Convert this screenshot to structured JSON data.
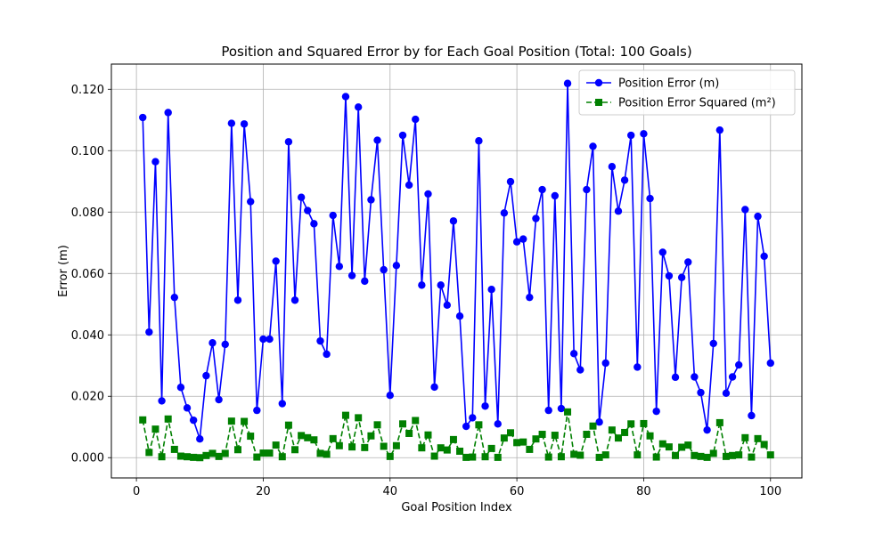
{
  "chart_data": {
    "type": "line",
    "title": "Position and Squared Error by for Each Goal Position (Total: 100 Goals)",
    "xlabel": "Goal Position Index",
    "ylabel": "Error (m)",
    "xlim": [
      -3.95,
      104.95
    ],
    "ylim": [
      -0.0066,
      0.1282
    ],
    "xticks": [
      0,
      20,
      40,
      60,
      80,
      100
    ],
    "yticks": [
      0.0,
      0.02,
      0.04,
      0.06,
      0.08,
      0.1,
      0.12
    ],
    "ytick_labels": [
      "0.000",
      "0.020",
      "0.040",
      "0.060",
      "0.080",
      "0.100",
      "0.120"
    ],
    "grid": true,
    "legend_position": "top-right",
    "x": [
      1,
      2,
      3,
      4,
      5,
      6,
      7,
      8,
      9,
      10,
      11,
      12,
      13,
      14,
      15,
      16,
      17,
      18,
      19,
      20,
      21,
      22,
      23,
      24,
      25,
      26,
      27,
      28,
      29,
      30,
      31,
      32,
      33,
      34,
      35,
      36,
      37,
      38,
      39,
      40,
      41,
      42,
      43,
      44,
      45,
      46,
      47,
      48,
      49,
      50,
      51,
      52,
      53,
      54,
      55,
      56,
      57,
      58,
      59,
      60,
      61,
      62,
      63,
      64,
      65,
      66,
      67,
      68,
      69,
      70,
      71,
      72,
      73,
      74,
      75,
      76,
      77,
      78,
      79,
      80,
      81,
      82,
      83,
      84,
      85,
      86,
      87,
      88,
      89,
      90,
      91,
      92,
      93,
      94,
      95,
      96,
      97,
      98,
      99,
      100
    ],
    "series": [
      {
        "name": "Position Error (m)",
        "color": "#0000ff",
        "marker": "circle",
        "linestyle": "solid",
        "values": [
          0.1108,
          0.0409,
          0.0964,
          0.0185,
          0.1124,
          0.0522,
          0.0229,
          0.0162,
          0.0122,
          0.0061,
          0.0267,
          0.0374,
          0.0189,
          0.0369,
          0.1089,
          0.0513,
          0.1087,
          0.0834,
          0.0154,
          0.0386,
          0.0386,
          0.064,
          0.0176,
          0.1029,
          0.0513,
          0.0848,
          0.0805,
          0.0762,
          0.038,
          0.0337,
          0.0789,
          0.0623,
          0.1176,
          0.0593,
          0.1142,
          0.0575,
          0.084,
          0.1034,
          0.0612,
          0.0203,
          0.0626,
          0.105,
          0.0888,
          0.1102,
          0.0562,
          0.0859,
          0.023,
          0.0562,
          0.0497,
          0.0771,
          0.0461,
          0.0102,
          0.013,
          0.1032,
          0.0168,
          0.0548,
          0.011,
          0.0797,
          0.0899,
          0.0703,
          0.0712,
          0.0522,
          0.0779,
          0.0873,
          0.0154,
          0.0853,
          0.016,
          0.1219,
          0.0339,
          0.0286,
          0.0873,
          0.1014,
          0.0116,
          0.0308,
          0.0948,
          0.0803,
          0.0904,
          0.105,
          0.0295,
          0.1055,
          0.0844,
          0.0151,
          0.0669,
          0.0592,
          0.0262,
          0.0587,
          0.0637,
          0.0263,
          0.0212,
          0.009,
          0.0372,
          0.1067,
          0.021,
          0.0263,
          0.0302,
          0.0808,
          0.0137,
          0.0786,
          0.0656,
          0.0308
        ]
      },
      {
        "name": "Position Error Squared (m²)",
        "color": "#008000",
        "marker": "square",
        "linestyle": "dashed",
        "values": [
          0.0123,
          0.0017,
          0.0093,
          0.0003,
          0.0126,
          0.0027,
          0.0005,
          0.0003,
          0.0001,
          0.0,
          0.0007,
          0.0014,
          0.0004,
          0.0014,
          0.0119,
          0.0026,
          0.0118,
          0.007,
          0.0002,
          0.0015,
          0.0015,
          0.0041,
          0.0003,
          0.0106,
          0.0026,
          0.0072,
          0.0065,
          0.0058,
          0.0014,
          0.0011,
          0.0062,
          0.0039,
          0.0138,
          0.0035,
          0.013,
          0.0033,
          0.0071,
          0.0107,
          0.0037,
          0.0004,
          0.0039,
          0.011,
          0.0079,
          0.0121,
          0.0032,
          0.0074,
          0.0005,
          0.0032,
          0.0025,
          0.0059,
          0.0021,
          0.0001,
          0.0002,
          0.0107,
          0.0003,
          0.003,
          0.0001,
          0.0064,
          0.0081,
          0.0049,
          0.0051,
          0.0027,
          0.0061,
          0.0076,
          0.0002,
          0.0073,
          0.0003,
          0.0149,
          0.0011,
          0.0008,
          0.0076,
          0.0103,
          0.0001,
          0.0009,
          0.009,
          0.0064,
          0.0082,
          0.011,
          0.0009,
          0.0111,
          0.0071,
          0.0002,
          0.0045,
          0.0035,
          0.0007,
          0.0034,
          0.0041,
          0.0007,
          0.0004,
          0.0001,
          0.0014,
          0.0114,
          0.0004,
          0.0007,
          0.0009,
          0.0065,
          0.0002,
          0.0062,
          0.0043,
          0.0009
        ]
      }
    ]
  }
}
